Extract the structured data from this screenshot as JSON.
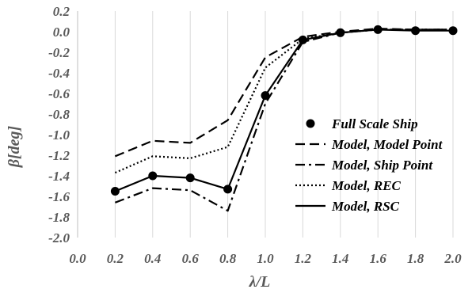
{
  "chart_data": {
    "type": "line",
    "xlabel": "λ/L",
    "ylabel": "β[deg]",
    "xlim": [
      0.0,
      2.0
    ],
    "ylim": [
      -2.0,
      0.2
    ],
    "x_ticks": [
      "0.0",
      "0.2",
      "0.4",
      "0.6",
      "0.8",
      "1.0",
      "1.2",
      "1.4",
      "1.6",
      "1.8",
      "2.0"
    ],
    "y_ticks": [
      "0.2",
      "0.0",
      "-0.2",
      "-0.4",
      "-0.6",
      "-0.8",
      "-1.0",
      "-1.2",
      "-1.4",
      "-1.6",
      "-1.8",
      "-2.0"
    ],
    "grid": "vertical",
    "legend": "right",
    "x": [
      0.2,
      0.4,
      0.6,
      0.8,
      1.0,
      1.2,
      1.4,
      1.6,
      1.8,
      2.0
    ],
    "series": [
      {
        "name": "Full Scale Ship",
        "style": "markers",
        "color": "#000000",
        "values": [
          -1.55,
          -1.4,
          -1.42,
          -1.53,
          -0.62,
          -0.08,
          -0.01,
          0.02,
          0.01,
          0.01
        ]
      },
      {
        "name": "Model, Model Point",
        "style": "dashed",
        "color": "#000000",
        "values": [
          -1.21,
          -1.06,
          -1.08,
          -0.86,
          -0.25,
          -0.05,
          0.0,
          0.03,
          0.02,
          0.02
        ]
      },
      {
        "name": "Model, Ship Point",
        "style": "dash-dot",
        "color": "#000000",
        "values": [
          -1.66,
          -1.52,
          -1.54,
          -1.74,
          -0.7,
          -0.1,
          -0.01,
          0.02,
          0.02,
          0.02
        ]
      },
      {
        "name": "Model, REC",
        "style": "dotted",
        "color": "#000000",
        "values": [
          -1.37,
          -1.21,
          -1.23,
          -1.12,
          -0.35,
          -0.07,
          -0.01,
          0.02,
          0.02,
          0.02
        ]
      },
      {
        "name": "Model, RSC",
        "style": "solid",
        "color": "#000000",
        "values": [
          -1.55,
          -1.4,
          -1.42,
          -1.53,
          -0.62,
          -0.08,
          -0.01,
          0.02,
          0.01,
          0.01
        ]
      }
    ]
  }
}
